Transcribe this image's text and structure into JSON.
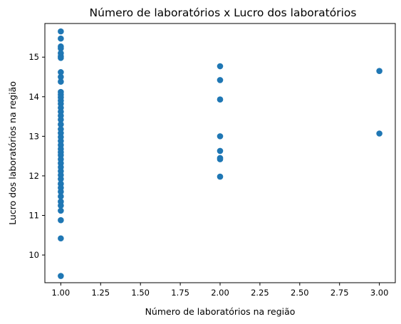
{
  "chart_data": {
    "type": "scatter",
    "title": "Número de laboratórios x Lucro dos laboratórios",
    "xlabel": "Número de laboratórios na região",
    "ylabel": "Lucro dos laboratórios na região",
    "xlim": [
      0.9,
      3.1
    ],
    "ylim": [
      9.3,
      15.85
    ],
    "xticks": [
      1.0,
      1.25,
      1.5,
      1.75,
      2.0,
      2.25,
      2.5,
      2.75,
      3.0
    ],
    "xtick_labels": [
      "1.00",
      "1.25",
      "1.50",
      "1.75",
      "2.00",
      "2.25",
      "2.50",
      "2.75",
      "3.00"
    ],
    "yticks": [
      10,
      11,
      12,
      13,
      14,
      15
    ],
    "ytick_labels": [
      "10",
      "11",
      "12",
      "13",
      "14",
      "15"
    ],
    "grid": false,
    "marker_color": "#1f77b4",
    "points": [
      {
        "x": 1,
        "y": 15.65
      },
      {
        "x": 1,
        "y": 15.47
      },
      {
        "x": 1,
        "y": 15.27
      },
      {
        "x": 1,
        "y": 15.22
      },
      {
        "x": 1,
        "y": 15.1
      },
      {
        "x": 1,
        "y": 15.02
      },
      {
        "x": 1,
        "y": 14.98
      },
      {
        "x": 1,
        "y": 14.62
      },
      {
        "x": 1,
        "y": 14.5
      },
      {
        "x": 1,
        "y": 14.38
      },
      {
        "x": 1,
        "y": 14.12
      },
      {
        "x": 1,
        "y": 14.05
      },
      {
        "x": 1,
        "y": 13.98
      },
      {
        "x": 1,
        "y": 13.9
      },
      {
        "x": 1,
        "y": 13.82
      },
      {
        "x": 1,
        "y": 13.72
      },
      {
        "x": 1,
        "y": 13.62
      },
      {
        "x": 1,
        "y": 13.52
      },
      {
        "x": 1,
        "y": 13.42
      },
      {
        "x": 1,
        "y": 13.3
      },
      {
        "x": 1,
        "y": 13.18
      },
      {
        "x": 1,
        "y": 13.08
      },
      {
        "x": 1,
        "y": 12.98
      },
      {
        "x": 1,
        "y": 12.88
      },
      {
        "x": 1,
        "y": 12.78
      },
      {
        "x": 1,
        "y": 12.68
      },
      {
        "x": 1,
        "y": 12.6
      },
      {
        "x": 1,
        "y": 12.52
      },
      {
        "x": 1,
        "y": 12.42
      },
      {
        "x": 1,
        "y": 12.32
      },
      {
        "x": 1,
        "y": 12.22
      },
      {
        "x": 1,
        "y": 12.12
      },
      {
        "x": 1,
        "y": 12.02
      },
      {
        "x": 1,
        "y": 11.92
      },
      {
        "x": 1,
        "y": 11.8
      },
      {
        "x": 1,
        "y": 11.7
      },
      {
        "x": 1,
        "y": 11.6
      },
      {
        "x": 1,
        "y": 11.48
      },
      {
        "x": 1,
        "y": 11.35
      },
      {
        "x": 1,
        "y": 11.25
      },
      {
        "x": 1,
        "y": 11.12
      },
      {
        "x": 1,
        "y": 10.88
      },
      {
        "x": 1,
        "y": 10.42
      },
      {
        "x": 1,
        "y": 9.47
      },
      {
        "x": 2,
        "y": 14.77
      },
      {
        "x": 2,
        "y": 14.42
      },
      {
        "x": 2,
        "y": 13.93
      },
      {
        "x": 2,
        "y": 13.0
      },
      {
        "x": 2,
        "y": 12.63
      },
      {
        "x": 2,
        "y": 12.45
      },
      {
        "x": 2,
        "y": 12.42
      },
      {
        "x": 2,
        "y": 11.98
      },
      {
        "x": 3,
        "y": 14.65
      },
      {
        "x": 3,
        "y": 13.07
      }
    ]
  }
}
